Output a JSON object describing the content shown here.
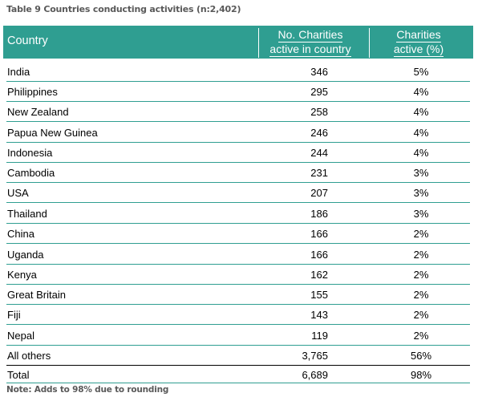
{
  "caption": "Table 9 Countries conducting activities (n:2,402)",
  "note": "Note: Adds to 98% due to rounding",
  "columns": {
    "country": "Country",
    "no_charities_line1": "No. Charities",
    "no_charities_line2": "active in country",
    "pct_line1": "Charities",
    "pct_line2": "active (%)"
  },
  "rows": [
    {
      "country": "India",
      "count": "346",
      "pct": "5%"
    },
    {
      "country": "Philippines",
      "count": "295",
      "pct": "4%"
    },
    {
      "country": "New Zealand",
      "count": "258",
      "pct": "4%"
    },
    {
      "country": "Papua New Guinea",
      "count": "246",
      "pct": "4%"
    },
    {
      "country": "Indonesia",
      "count": "244",
      "pct": "4%"
    },
    {
      "country": "Cambodia",
      "count": "231",
      "pct": "3%"
    },
    {
      "country": "USA",
      "count": "207",
      "pct": "3%"
    },
    {
      "country": "Thailand",
      "count": "186",
      "pct": "3%"
    },
    {
      "country": "China",
      "count": "166",
      "pct": "2%"
    },
    {
      "country": "Uganda",
      "count": "166",
      "pct": "2%"
    },
    {
      "country": "Kenya",
      "count": "162",
      "pct": "2%"
    },
    {
      "country": "Great Britain",
      "count": "155",
      "pct": "2%"
    },
    {
      "country": "Fiji",
      "count": "143",
      "pct": "2%"
    },
    {
      "country": "Nepal",
      "count": "119",
      "pct": "2%"
    },
    {
      "country": "All others",
      "count": "3,765",
      "pct": "56%"
    },
    {
      "country": "Total",
      "count": "6,689",
      "pct": "98%"
    }
  ]
}
